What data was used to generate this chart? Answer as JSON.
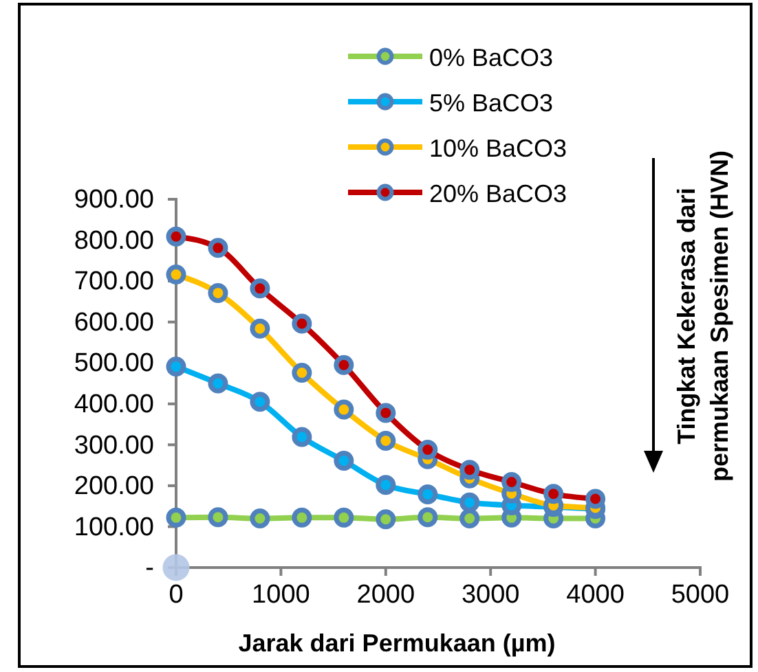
{
  "chart_data": {
    "type": "line",
    "xlabel": "Jarak dari Permukaan (µm)",
    "ylabel": "Tingkat Kekerasa dari permukaan Spesimen (HVN)",
    "x": [
      0,
      400,
      800,
      1200,
      1600,
      2000,
      2400,
      2800,
      3200,
      3600,
      4000
    ],
    "series": [
      {
        "name": "0% BaCO3",
        "color": "#92d050",
        "values": [
          122,
          123,
          120,
          122,
          122,
          118,
          123,
          120,
          122,
          120,
          120
        ]
      },
      {
        "name": "5% BaCO3",
        "color": "#00b0f0",
        "values": [
          491,
          450,
          405,
          319,
          261,
          202,
          179,
          159,
          152,
          148,
          143
        ]
      },
      {
        "name": "10% BaCO3",
        "color": "#ffc000",
        "values": [
          716,
          671,
          584,
          476,
          386,
          310,
          265,
          218,
          181,
          152,
          146
        ]
      },
      {
        "name": "20% BaCO3",
        "color": "#c00000",
        "values": [
          809,
          781,
          682,
          596,
          495,
          378,
          288,
          239,
          209,
          180,
          168
        ]
      },
      {
        "type": "scatter",
        "color": "#b4c7e7",
        "x": [
          0
        ],
        "values": [
          0
        ]
      }
    ],
    "xlim": [
      0,
      5000
    ],
    "xticks": [
      0,
      1000,
      2000,
      3000,
      4000,
      5000
    ],
    "ylim": [
      0,
      900
    ],
    "yticks": [
      {
        "value": 0,
        "label": "-"
      },
      {
        "value": 100,
        "label": "100.00"
      },
      {
        "value": 200,
        "label": "200.00"
      },
      {
        "value": 300,
        "label": "300.00"
      },
      {
        "value": 400,
        "label": "400.00"
      },
      {
        "value": 500,
        "label": "500.00"
      },
      {
        "value": 600,
        "label": "600.00"
      },
      {
        "value": 700,
        "label": "700.00"
      },
      {
        "value": 800,
        "label": "800.00"
      },
      {
        "value": 900,
        "label": "900.00"
      }
    ],
    "legend": "top",
    "marker": "circle",
    "grid": false
  }
}
